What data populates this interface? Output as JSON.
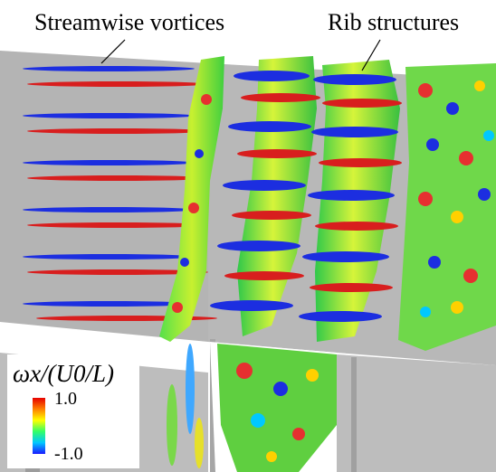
{
  "annotations": {
    "left": "Streamwise vortices",
    "right": "Rib structures"
  },
  "legend": {
    "title": "ωx/(U0/L)",
    "max_label": "1.0",
    "min_label": "-1.0",
    "colormap": [
      "#1a1aff",
      "#00c8ff",
      "#33ff66",
      "#ffff00",
      "#ff8000",
      "#e60000"
    ]
  },
  "colors": {
    "background": "#ffffff",
    "wall": "#b4b4b4",
    "wall_dark": "#9a9a9a",
    "positive_vortex": "#d81e1e",
    "negative_vortex": "#1c2ee0"
  }
}
